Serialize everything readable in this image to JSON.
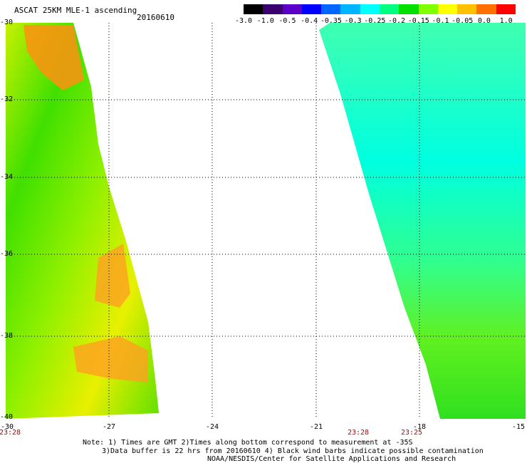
{
  "header": {
    "title": "ASCAT 25KM MLE-1 ascending",
    "date": "20160610"
  },
  "colorbar": {
    "labels": [
      "-3.0",
      "-1.0",
      "-0.5",
      "-0.4",
      "-0.35",
      "-0.3",
      "-0.25",
      "-0.2",
      "-0.15",
      "-0.1",
      "-0.05",
      "0.0",
      "1.0"
    ],
    "colors": [
      "#000000",
      "#3a0070",
      "#5a00c8",
      "#0000ff",
      "#0066ff",
      "#00b4ff",
      "#00ffff",
      "#00ff80",
      "#00e000",
      "#80ff00",
      "#ffff00",
      "#ffc000",
      "#ff7000",
      "#ff0000"
    ]
  },
  "map": {
    "y_ticks": [
      "-30",
      "-32",
      "-34",
      "-36",
      "-38",
      "-40"
    ],
    "x_ticks": [
      "-30",
      "-27",
      "-24",
      "-21",
      "-18",
      "-15"
    ],
    "times": [
      "23:28",
      "23:28",
      "23:25"
    ]
  },
  "footer": {
    "line1": "Note: 1) Times are GMT 2)Times along bottom correspond to measurement at -35S",
    "line2": "3)Data buffer is 22 hrs from 20160610 4) Black wind barbs indicate possible contamination",
    "line3": "NOAA/NESDIS/Center for Satellite Applications and Research"
  }
}
